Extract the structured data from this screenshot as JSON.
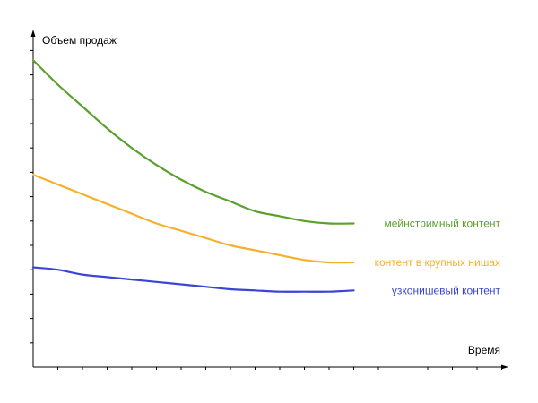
{
  "chart_data": {
    "type": "line",
    "title": "",
    "xlabel": "Время",
    "ylabel": "Объем продаж",
    "grid": false,
    "legend": "inline-right",
    "xlim": [
      0,
      13
    ],
    "ylim": [
      0,
      13
    ],
    "x": [
      0,
      1,
      2,
      3,
      4,
      5,
      6,
      7,
      8,
      9,
      10,
      11,
      12,
      13
    ],
    "series": [
      {
        "name": "мейнстримный контент",
        "color": "#5aa02c",
        "values": [
          12.6,
          11.6,
          10.7,
          9.8,
          9.0,
          8.3,
          7.7,
          7.2,
          6.8,
          6.4,
          6.2,
          6.0,
          5.9,
          5.9
        ]
      },
      {
        "name": "контент в крупных нишах",
        "color": "#f5b12d",
        "values": [
          7.9,
          7.5,
          7.1,
          6.7,
          6.3,
          5.9,
          5.6,
          5.3,
          5.0,
          4.8,
          4.6,
          4.4,
          4.3,
          4.3
        ]
      },
      {
        "name": "узконишевый контент",
        "color": "#3a44d6",
        "values": [
          4.1,
          4.0,
          3.8,
          3.7,
          3.6,
          3.5,
          3.4,
          3.3,
          3.2,
          3.15,
          3.1,
          3.1,
          3.1,
          3.15
        ]
      }
    ]
  }
}
